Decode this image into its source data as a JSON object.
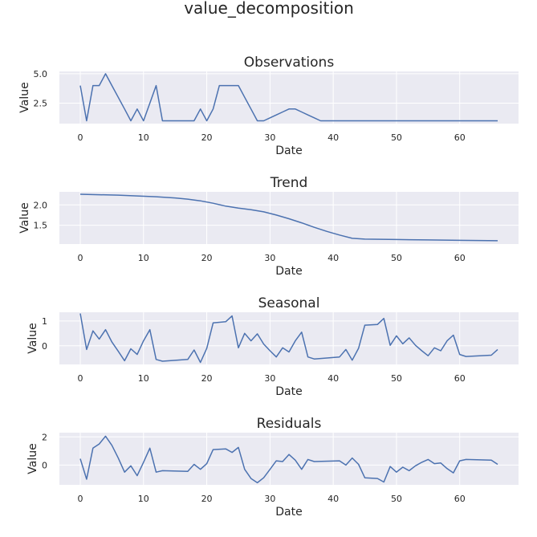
{
  "figure_title": "value_decomposition",
  "colors": {
    "axes_bg": "#EAEAF2",
    "grid": "#FFFFFF",
    "line": "#4C72B0",
    "text": "#262626"
  },
  "chart_data": [
    {
      "type": "line",
      "title": "Observations",
      "xlabel": "Date",
      "ylabel": "Value",
      "xlim": [
        -3.3,
        69.3
      ],
      "ylim": [
        0.76,
        5.2
      ],
      "xticks": [
        0,
        10,
        20,
        30,
        40,
        50,
        60
      ],
      "xtick_labels": [
        "0",
        "10",
        "20",
        "30",
        "40",
        "50",
        "60"
      ],
      "yticks": [
        2.5,
        5.0
      ],
      "ytick_labels": [
        "2.5",
        "5.0"
      ],
      "x": [
        0,
        1,
        2,
        3,
        4,
        5,
        6,
        7,
        8,
        9,
        10,
        11,
        12,
        13,
        14,
        15,
        16,
        17,
        18,
        19,
        20,
        21,
        22,
        23,
        24,
        25,
        26,
        27,
        28,
        29,
        30,
        31,
        32,
        33,
        34,
        35,
        36,
        37,
        38,
        39,
        40,
        41,
        42,
        43,
        44,
        45,
        46,
        47,
        48,
        49,
        50,
        51,
        52,
        53,
        54,
        55,
        56,
        57,
        58,
        59,
        60,
        61,
        62,
        63,
        64,
        65,
        66
      ],
      "y": [
        4,
        1,
        4,
        4,
        5,
        4,
        3,
        2,
        1,
        2,
        1,
        2.5,
        4,
        1,
        1,
        1,
        1,
        1,
        1,
        2,
        1,
        2,
        4,
        4,
        4,
        4,
        3,
        2,
        1,
        1,
        1.25,
        1.5,
        1.75,
        2,
        2,
        1.75,
        1.5,
        1.25,
        1,
        1,
        1,
        1,
        1,
        1,
        1,
        1,
        1,
        1,
        1,
        1,
        1,
        1,
        1,
        1,
        1,
        1,
        1,
        1,
        1,
        1,
        1,
        1,
        1,
        1,
        1,
        1,
        1
      ]
    },
    {
      "type": "line",
      "title": "Trend",
      "xlabel": "Date",
      "ylabel": "Value",
      "xlim": [
        -3.3,
        69.3
      ],
      "ylim": [
        1.04,
        2.32
      ],
      "xticks": [
        0,
        10,
        20,
        30,
        40,
        50,
        60
      ],
      "xtick_labels": [
        "0",
        "10",
        "20",
        "30",
        "40",
        "50",
        "60"
      ],
      "yticks": [
        1.5,
        2.0
      ],
      "ytick_labels": [
        "1.5",
        "2.0"
      ],
      "x": [
        0,
        3,
        6,
        9,
        12,
        15,
        17,
        19,
        21,
        23,
        25,
        27,
        29,
        31,
        33,
        35,
        37,
        39,
        41,
        43,
        45,
        50,
        55,
        60,
        66
      ],
      "y": [
        2.26,
        2.25,
        2.24,
        2.22,
        2.2,
        2.17,
        2.14,
        2.1,
        2.04,
        1.97,
        1.92,
        1.88,
        1.83,
        1.75,
        1.66,
        1.56,
        1.45,
        1.35,
        1.26,
        1.18,
        1.16,
        1.15,
        1.14,
        1.13,
        1.12
      ]
    },
    {
      "type": "line",
      "title": "Seasonal",
      "xlabel": "Date",
      "ylabel": "Value",
      "xlim": [
        -3.3,
        69.3
      ],
      "ylim": [
        -0.75,
        1.35
      ],
      "xticks": [
        0,
        10,
        20,
        30,
        40,
        50,
        60
      ],
      "xtick_labels": [
        "0",
        "10",
        "20",
        "30",
        "40",
        "50",
        "60"
      ],
      "yticks": [
        0,
        1
      ],
      "ytick_labels": [
        "0",
        "1"
      ],
      "x": [
        0,
        1,
        2,
        3,
        4,
        5,
        6,
        7,
        8,
        9,
        10,
        11,
        12,
        13,
        17,
        18,
        19,
        20,
        21,
        23,
        24,
        25,
        26,
        27,
        28,
        29,
        30,
        31,
        32,
        33,
        34,
        35,
        36,
        37,
        41,
        42,
        43,
        44,
        45,
        47,
        48,
        49,
        50,
        51,
        52,
        53,
        54,
        55,
        56,
        57,
        58,
        59,
        60,
        61,
        65,
        66
      ],
      "y": [
        1.3,
        -0.15,
        0.6,
        0.27,
        0.65,
        0.15,
        -0.22,
        -0.6,
        -0.12,
        -0.35,
        0.2,
        0.65,
        -0.55,
        -0.62,
        -0.55,
        -0.17,
        -0.67,
        -0.1,
        0.92,
        0.97,
        1.2,
        -0.08,
        0.5,
        0.2,
        0.48,
        0.07,
        -0.2,
        -0.45,
        -0.08,
        -0.25,
        0.2,
        0.55,
        -0.45,
        -0.53,
        -0.45,
        -0.15,
        -0.58,
        -0.1,
        0.83,
        0.86,
        1.1,
        0.02,
        0.4,
        0.08,
        0.32,
        0.02,
        -0.2,
        -0.4,
        -0.08,
        -0.2,
        0.2,
        0.43,
        -0.35,
        -0.43,
        -0.38,
        -0.15
      ]
    },
    {
      "type": "line",
      "title": "Residuals",
      "xlabel": "Date",
      "ylabel": "Value",
      "xlim": [
        -3.3,
        69.3
      ],
      "ylim": [
        -1.4,
        2.3
      ],
      "xticks": [
        0,
        10,
        20,
        30,
        40,
        50,
        60
      ],
      "xtick_labels": [
        "0",
        "10",
        "20",
        "30",
        "40",
        "50",
        "60"
      ],
      "yticks": [
        0,
        2
      ],
      "ytick_labels": [
        "0",
        "2"
      ],
      "x": [
        0,
        1,
        2,
        3,
        4,
        5,
        6,
        7,
        8,
        9,
        10,
        11,
        12,
        13,
        17,
        18,
        19,
        20,
        21,
        23,
        24,
        25,
        26,
        27,
        28,
        29,
        30,
        31,
        32,
        33,
        34,
        35,
        36,
        37,
        41,
        42,
        43,
        44,
        45,
        47,
        48,
        49,
        50,
        51,
        52,
        53,
        54,
        55,
        56,
        57,
        58,
        59,
        60,
        61,
        65,
        66
      ],
      "y": [
        0.45,
        -1,
        1.2,
        1.5,
        2.05,
        1.4,
        0.5,
        -0.5,
        -0.05,
        -0.75,
        0.2,
        1.2,
        -0.5,
        -0.4,
        -0.45,
        0.05,
        -0.3,
        0.1,
        1.1,
        1.15,
        0.9,
        1.25,
        -0.3,
        -0.95,
        -1.25,
        -0.9,
        -0.3,
        0.3,
        0.25,
        0.75,
        0.35,
        -0.3,
        0.4,
        0.25,
        0.3,
        0,
        0.5,
        0.05,
        -0.9,
        -0.95,
        -1.2,
        -0.1,
        -0.5,
        -0.15,
        -0.4,
        -0.05,
        0.2,
        0.4,
        0.1,
        0.15,
        -0.25,
        -0.55,
        0.3,
        0.4,
        0.35,
        0.05
      ]
    }
  ]
}
